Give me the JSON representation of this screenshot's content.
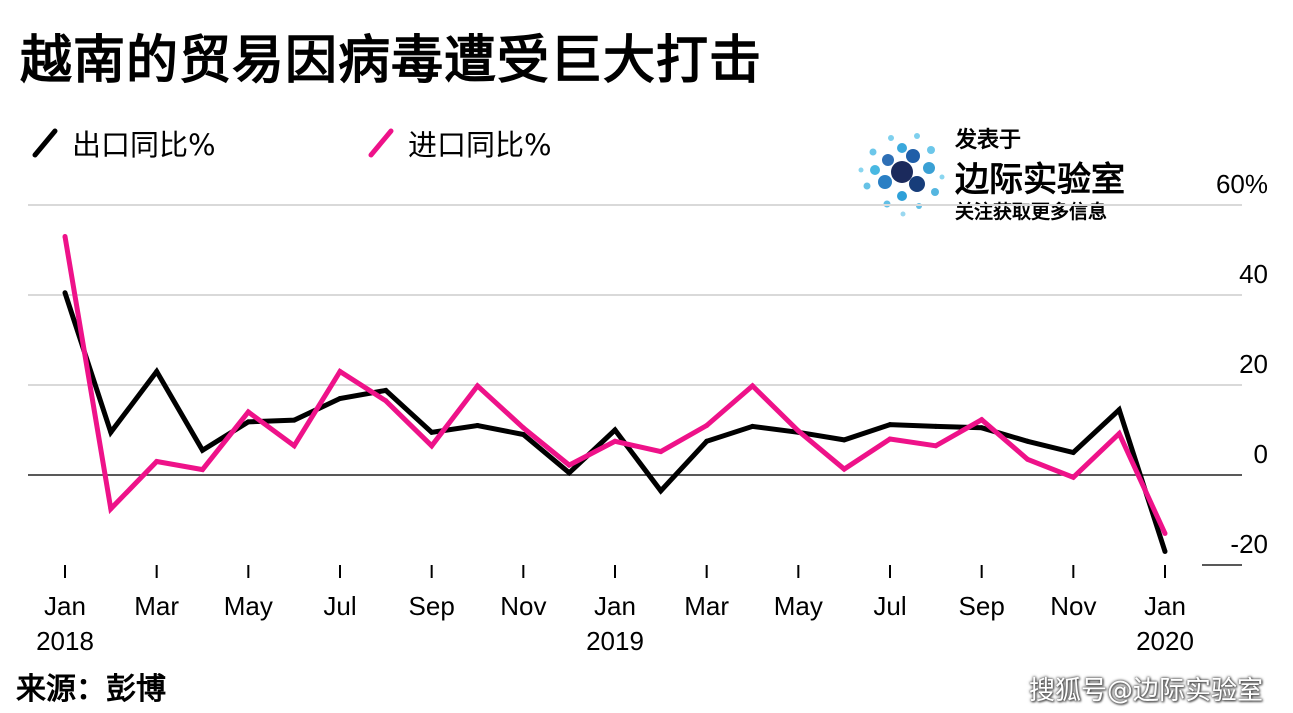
{
  "title": "越南的贸易因病毒遭受巨大打击",
  "legend": [
    {
      "label": "出口同比%",
      "color": "#000000"
    },
    {
      "label": "进口同比%",
      "color": "#ee1289"
    }
  ],
  "badge": {
    "caption": "发表于",
    "name": "边际实验室",
    "tagline": "关注获取更多信息"
  },
  "source": "来源：彭博",
  "watermark": "搜狐号@边际实验室",
  "chart_data": {
    "type": "line",
    "title": "越南的贸易因病毒遭受巨大打击",
    "x": [
      "2018-01",
      "2018-02",
      "2018-03",
      "2018-04",
      "2018-05",
      "2018-06",
      "2018-07",
      "2018-08",
      "2018-09",
      "2018-10",
      "2018-11",
      "2018-12",
      "2019-01",
      "2019-02",
      "2019-03",
      "2019-04",
      "2019-05",
      "2019-06",
      "2019-07",
      "2019-08",
      "2019-09",
      "2019-10",
      "2019-11",
      "2019-12",
      "2020-01"
    ],
    "series": [
      {
        "name": "出口同比%",
        "color": "#000000",
        "values": [
          40.5,
          9.5,
          23,
          5.5,
          11.8,
          12.2,
          17,
          18.8,
          9.5,
          11,
          9,
          0.5,
          10,
          -3.5,
          7.5,
          10.8,
          9.5,
          7.8,
          11.2,
          10.8,
          10.5,
          7.5,
          5,
          14.5,
          -17
        ]
      },
      {
        "name": "进口同比%",
        "color": "#ee1289",
        "values": [
          53,
          -7.5,
          3,
          1.2,
          14,
          6.5,
          23,
          16.5,
          6.5,
          19.8,
          10.5,
          2.2,
          7.5,
          5.2,
          11,
          19.8,
          9.8,
          1.3,
          8,
          6.5,
          12.3,
          3.5,
          -0.5,
          9.2,
          -13
        ]
      }
    ],
    "xtick_labels": [
      {
        "label": "Jan",
        "year": "2018",
        "index": 0
      },
      {
        "label": "Mar",
        "index": 2
      },
      {
        "label": "May",
        "index": 4
      },
      {
        "label": "Jul",
        "index": 6
      },
      {
        "label": "Sep",
        "index": 8
      },
      {
        "label": "Nov",
        "index": 10
      },
      {
        "label": "Jan",
        "year": "2019",
        "index": 12
      },
      {
        "label": "Mar",
        "index": 14
      },
      {
        "label": "May",
        "index": 16
      },
      {
        "label": "Jul",
        "index": 18
      },
      {
        "label": "Sep",
        "index": 20
      },
      {
        "label": "Nov",
        "index": 22
      },
      {
        "label": "Jan",
        "year": "2020",
        "index": 24
      }
    ],
    "yticks": [
      {
        "value": 60,
        "label": "60%"
      },
      {
        "value": 40,
        "label": "40"
      },
      {
        "value": 20,
        "label": "20"
      },
      {
        "value": 0,
        "label": "0"
      },
      {
        "value": -20,
        "label": "-20"
      }
    ],
    "ylim": [
      -20,
      60
    ],
    "xlabel": "",
    "ylabel": "",
    "grid": true,
    "axis_side": "right"
  }
}
